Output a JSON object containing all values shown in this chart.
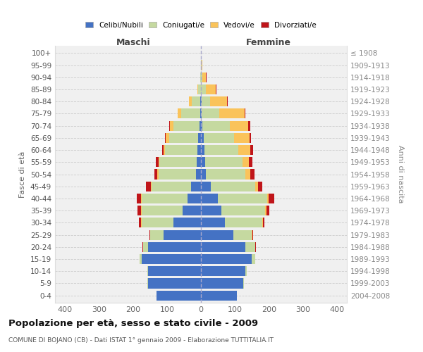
{
  "age_groups": [
    "0-4",
    "5-9",
    "10-14",
    "15-19",
    "20-24",
    "25-29",
    "30-34",
    "35-39",
    "40-44",
    "45-49",
    "50-54",
    "55-59",
    "60-64",
    "65-69",
    "70-74",
    "75-79",
    "80-84",
    "85-89",
    "90-94",
    "95-99",
    "100+"
  ],
  "birth_years": [
    "2004-2008",
    "1999-2003",
    "1994-1998",
    "1989-1993",
    "1984-1988",
    "1979-1983",
    "1974-1978",
    "1969-1973",
    "1964-1968",
    "1959-1963",
    "1954-1958",
    "1949-1953",
    "1944-1948",
    "1939-1943",
    "1934-1938",
    "1929-1933",
    "1924-1928",
    "1919-1923",
    "1914-1918",
    "1909-1913",
    "≤ 1908"
  ],
  "males": {
    "celibi": [
      130,
      155,
      155,
      175,
      155,
      110,
      80,
      55,
      40,
      30,
      15,
      12,
      10,
      8,
      5,
      3,
      2,
      0,
      0,
      0,
      0
    ],
    "coniugati": [
      0,
      2,
      3,
      5,
      15,
      40,
      95,
      120,
      135,
      115,
      110,
      110,
      95,
      85,
      75,
      55,
      25,
      8,
      3,
      0,
      0
    ],
    "vedovi": [
      0,
      0,
      0,
      0,
      0,
      0,
      2,
      2,
      2,
      2,
      3,
      3,
      5,
      10,
      12,
      10,
      8,
      3,
      0,
      0,
      0
    ],
    "divorziati": [
      0,
      0,
      0,
      0,
      2,
      2,
      5,
      10,
      12,
      15,
      10,
      8,
      5,
      2,
      2,
      0,
      0,
      0,
      0,
      0,
      0
    ]
  },
  "females": {
    "nubili": [
      105,
      125,
      130,
      150,
      130,
      95,
      70,
      60,
      50,
      30,
      15,
      12,
      10,
      8,
      5,
      3,
      2,
      0,
      0,
      0,
      0
    ],
    "coniugate": [
      0,
      2,
      5,
      10,
      30,
      55,
      110,
      130,
      145,
      130,
      115,
      110,
      100,
      90,
      80,
      50,
      25,
      15,
      5,
      2,
      0
    ],
    "vedove": [
      0,
      0,
      0,
      0,
      0,
      2,
      2,
      3,
      5,
      8,
      15,
      20,
      35,
      45,
      55,
      75,
      50,
      28,
      10,
      2,
      0
    ],
    "divorziate": [
      0,
      0,
      0,
      0,
      2,
      2,
      5,
      8,
      15,
      12,
      12,
      10,
      8,
      5,
      5,
      2,
      2,
      2,
      2,
      0,
      0
    ]
  },
  "colors": {
    "celibi": "#4472c4",
    "coniugati": "#c5d9a0",
    "vedovi": "#fac35a",
    "divorziati": "#c0151a"
  },
  "xlim": [
    -430,
    430
  ],
  "xticks": [
    -400,
    -300,
    -200,
    -100,
    0,
    100,
    200,
    300,
    400
  ],
  "xtick_labels": [
    "400",
    "300",
    "200",
    "100",
    "0",
    "100",
    "200",
    "300",
    "400"
  ],
  "title": "Popolazione per età, sesso e stato civile - 2009",
  "subtitle": "COMUNE DI BOJANO (CB) - Dati ISTAT 1° gennaio 2009 - Elaborazione TUTTITALIA.IT",
  "ylabel_left": "Fasce di età",
  "ylabel_right": "Anni di nascita",
  "maschi_label": "Maschi",
  "femmine_label": "Femmine",
  "legend_labels": [
    "Celibi/Nubili",
    "Coniugati/e",
    "Vedovi/e",
    "Divorziati/e"
  ]
}
